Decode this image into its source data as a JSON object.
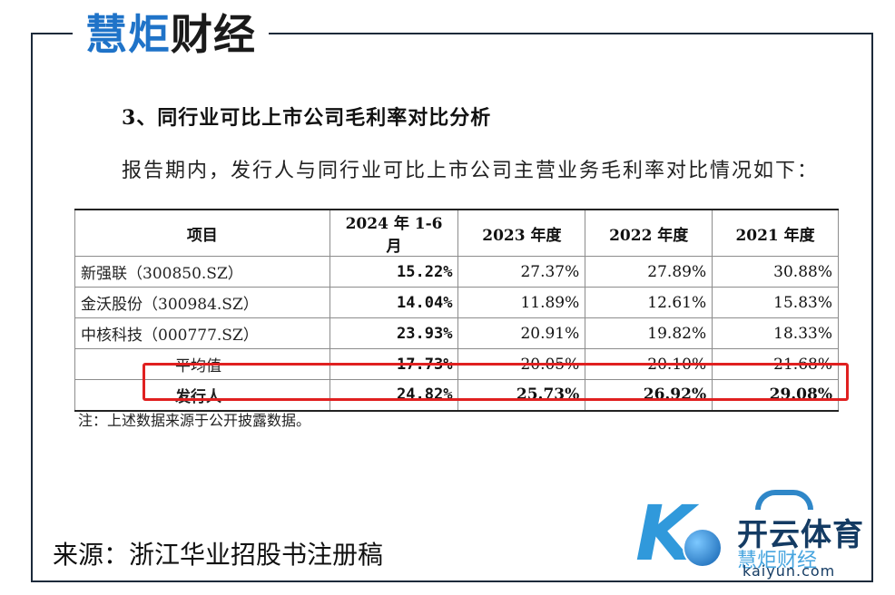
{
  "brand": {
    "part1": "慧炬",
    "part2": "财经"
  },
  "heading": "3、同行业可比上市公司毛利率对比分析",
  "intro": "报告期内，发行人与同行业可比上市公司主营业务毛利率对比情况如下：",
  "table": {
    "headers": [
      "项目",
      "2024 年 1-6 月",
      "2023 年度",
      "2022 年度",
      "2021 年度"
    ],
    "rows": [
      {
        "name": "新强联（300850.SZ）",
        "values": [
          "15.22%",
          "27.37%",
          "27.89%",
          "30.88%"
        ]
      },
      {
        "name": "金沃股份（300984.SZ）",
        "values": [
          "14.04%",
          "11.89%",
          "12.61%",
          "15.83%"
        ]
      },
      {
        "name": "中核科技（000777.SZ）",
        "values": [
          "23.93%",
          "20.91%",
          "19.82%",
          "18.33%"
        ]
      },
      {
        "name": "平均值",
        "values": [
          "17.73%",
          "20.05%",
          "20.10%",
          "21.68%"
        ]
      },
      {
        "name": "发行人",
        "values": [
          "24.82%",
          "25.73%",
          "26.92%",
          "29.08%"
        ]
      }
    ]
  },
  "note": "注：上述数据来源于公开披露数据。",
  "source": "来源：浙江华业招股书注册稿",
  "watermark": {
    "line1": "开云体育",
    "line2": "慧炬财经",
    "line3": "kaiyun.com"
  },
  "colors": {
    "brand_blue": "#1f73c8",
    "highlight_red": "#e02020",
    "frame": "#1c2a3a"
  }
}
